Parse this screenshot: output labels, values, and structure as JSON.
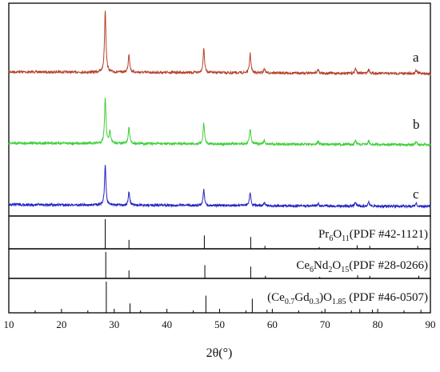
{
  "chart_data": {
    "type": "line",
    "xlabel": "2θ(°)",
    "ylabel": "",
    "xlim": [
      10,
      90
    ],
    "xticks": [
      "10",
      "20",
      "30",
      "40",
      "50",
      "60",
      "70",
      "80",
      "90"
    ],
    "grid": false,
    "series": [
      {
        "name": "a",
        "color": "#b5412a",
        "peaks": [
          [
            28.3,
            1.0
          ],
          [
            32.8,
            0.3
          ],
          [
            47.0,
            0.39
          ],
          [
            55.8,
            0.31
          ],
          [
            58.5,
            0.07
          ],
          [
            68.7,
            0.06
          ],
          [
            75.8,
            0.08
          ],
          [
            78.3,
            0.07
          ],
          [
            87.3,
            0.06
          ]
        ]
      },
      {
        "name": "b",
        "color": "#3fcf3a",
        "peaks": [
          [
            28.3,
            0.8
          ],
          [
            29.2,
            0.2
          ],
          [
            32.8,
            0.28
          ],
          [
            47.0,
            0.36
          ],
          [
            55.8,
            0.27
          ],
          [
            58.5,
            0.06
          ],
          [
            68.7,
            0.05
          ],
          [
            75.8,
            0.07
          ],
          [
            78.3,
            0.06
          ],
          [
            87.3,
            0.05
          ]
        ]
      },
      {
        "name": "c",
        "color": "#2323c4",
        "peaks": [
          [
            28.3,
            0.82
          ],
          [
            32.8,
            0.27
          ],
          [
            47.0,
            0.33
          ],
          [
            55.8,
            0.28
          ],
          [
            58.5,
            0.07
          ],
          [
            68.7,
            0.05
          ],
          [
            75.8,
            0.08
          ],
          [
            78.3,
            0.08
          ],
          [
            87.3,
            0.07
          ]
        ]
      }
    ],
    "references": [
      {
        "pre": "Pr",
        "sub1": "6",
        "mid": "O",
        "sub2": "11",
        "post": "(PDF #42-1121)",
        "lines": [
          [
            28.3,
            1.0
          ],
          [
            32.8,
            0.3
          ],
          [
            47.1,
            0.45
          ],
          [
            55.9,
            0.4
          ],
          [
            58.6,
            0.1
          ],
          [
            68.9,
            0.06
          ],
          [
            76.1,
            0.12
          ],
          [
            78.5,
            0.1
          ],
          [
            87.6,
            0.1
          ]
        ]
      },
      {
        "pre": "Ce",
        "sub1": "6",
        "mid": "Nd",
        "sub2": "2",
        "post2": "O",
        "sub3": "15",
        "post": "(PDF #28-0266)",
        "lines": [
          [
            28.4,
            1.0
          ],
          [
            32.8,
            0.3
          ],
          [
            47.2,
            0.5
          ],
          [
            55.9,
            0.45
          ],
          [
            58.7,
            0.1
          ],
          [
            69.0,
            0.06
          ],
          [
            76.2,
            0.12
          ],
          [
            78.5,
            0.1
          ],
          [
            87.8,
            0.1
          ]
        ]
      },
      {
        "pre": "(Ce",
        "sub1": "0.7",
        "mid": "Gd",
        "sub2": "0.3",
        "post2": ")O",
        "sub3": "1.85",
        "post": " (PDF #46-0507)",
        "lines": [
          [
            28.5,
            1.0
          ],
          [
            33.0,
            0.3
          ],
          [
            47.4,
            0.55
          ],
          [
            56.2,
            0.45
          ],
          [
            59.0,
            0.1
          ],
          [
            69.4,
            0.06
          ],
          [
            76.6,
            0.12
          ],
          [
            79.0,
            0.1
          ],
          [
            88.2,
            0.1
          ]
        ]
      }
    ]
  }
}
